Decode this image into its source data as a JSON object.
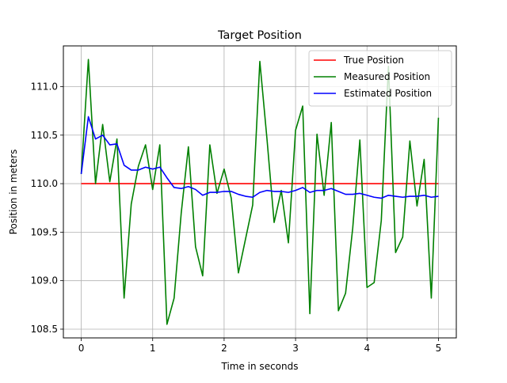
{
  "chart_data": {
    "type": "line",
    "title": "Target Position",
    "xlabel": "Time in seconds",
    "ylabel": "Position in meters",
    "xlim": [
      -0.25,
      5.25
    ],
    "ylim": [
      108.41,
      111.42
    ],
    "xticks": [
      0,
      1,
      2,
      3,
      4,
      5
    ],
    "xtick_labels": [
      "0",
      "1",
      "2",
      "3",
      "4",
      "5"
    ],
    "yticks": [
      108.5,
      109.0,
      109.5,
      110.0,
      110.5,
      111.0
    ],
    "ytick_labels": [
      "108.5",
      "109.0",
      "109.5",
      "110.0",
      "110.5",
      "111.0"
    ],
    "grid": true,
    "legend_position": "top-right",
    "x": [
      0.0,
      0.1,
      0.2,
      0.3,
      0.4,
      0.5,
      0.6,
      0.7,
      0.8,
      0.9,
      1.0,
      1.1,
      1.2,
      1.3,
      1.4,
      1.5,
      1.6,
      1.7,
      1.8,
      1.9,
      2.0,
      2.1,
      2.2,
      2.3,
      2.4,
      2.5,
      2.6,
      2.7,
      2.8,
      2.9,
      3.0,
      3.1,
      3.2,
      3.3,
      3.4,
      3.5,
      3.6,
      3.7,
      3.8,
      3.9,
      4.0,
      4.1,
      4.2,
      4.3,
      4.4,
      4.5,
      4.6,
      4.7,
      4.8,
      4.9,
      5.0
    ],
    "series": [
      {
        "name": "True Position",
        "color": "#ff0000",
        "values": [
          110,
          110,
          110,
          110,
          110,
          110,
          110,
          110,
          110,
          110,
          110,
          110,
          110,
          110,
          110,
          110,
          110,
          110,
          110,
          110,
          110,
          110,
          110,
          110,
          110,
          110,
          110,
          110,
          110,
          110,
          110,
          110,
          110,
          110,
          110,
          110,
          110,
          110,
          110,
          110,
          110,
          110,
          110,
          110,
          110,
          110,
          110,
          110,
          110,
          110,
          110
        ]
      },
      {
        "name": "Measured Position",
        "color": "#008000",
        "values": [
          110.1,
          111.28,
          110.0,
          110.61,
          110.02,
          110.46,
          108.82,
          109.79,
          110.18,
          110.4,
          109.94,
          110.4,
          108.55,
          108.82,
          109.7,
          110.38,
          109.35,
          109.05,
          110.4,
          109.9,
          110.15,
          109.85,
          109.08,
          109.43,
          109.78,
          111.26,
          110.46,
          109.6,
          109.93,
          109.39,
          110.55,
          110.8,
          108.66,
          110.51,
          109.88,
          110.63,
          108.69,
          108.87,
          109.54,
          110.45,
          108.93,
          108.98,
          109.62,
          111.21,
          109.29,
          109.45,
          110.44,
          109.77,
          110.25,
          108.82,
          110.68
        ]
      },
      {
        "name": "Estimated Position",
        "color": "#0000ff",
        "values": [
          110.1,
          110.69,
          110.46,
          110.5,
          110.4,
          110.41,
          110.19,
          110.14,
          110.14,
          110.17,
          110.15,
          110.17,
          110.06,
          109.96,
          109.95,
          109.97,
          109.94,
          109.88,
          109.91,
          109.91,
          109.92,
          109.92,
          109.89,
          109.87,
          109.86,
          109.91,
          109.93,
          109.92,
          109.92,
          109.91,
          109.93,
          109.96,
          109.91,
          109.93,
          109.93,
          109.95,
          109.92,
          109.89,
          109.89,
          109.9,
          109.88,
          109.86,
          109.85,
          109.88,
          109.87,
          109.86,
          109.87,
          109.87,
          109.88,
          109.86,
          109.87
        ]
      }
    ]
  }
}
